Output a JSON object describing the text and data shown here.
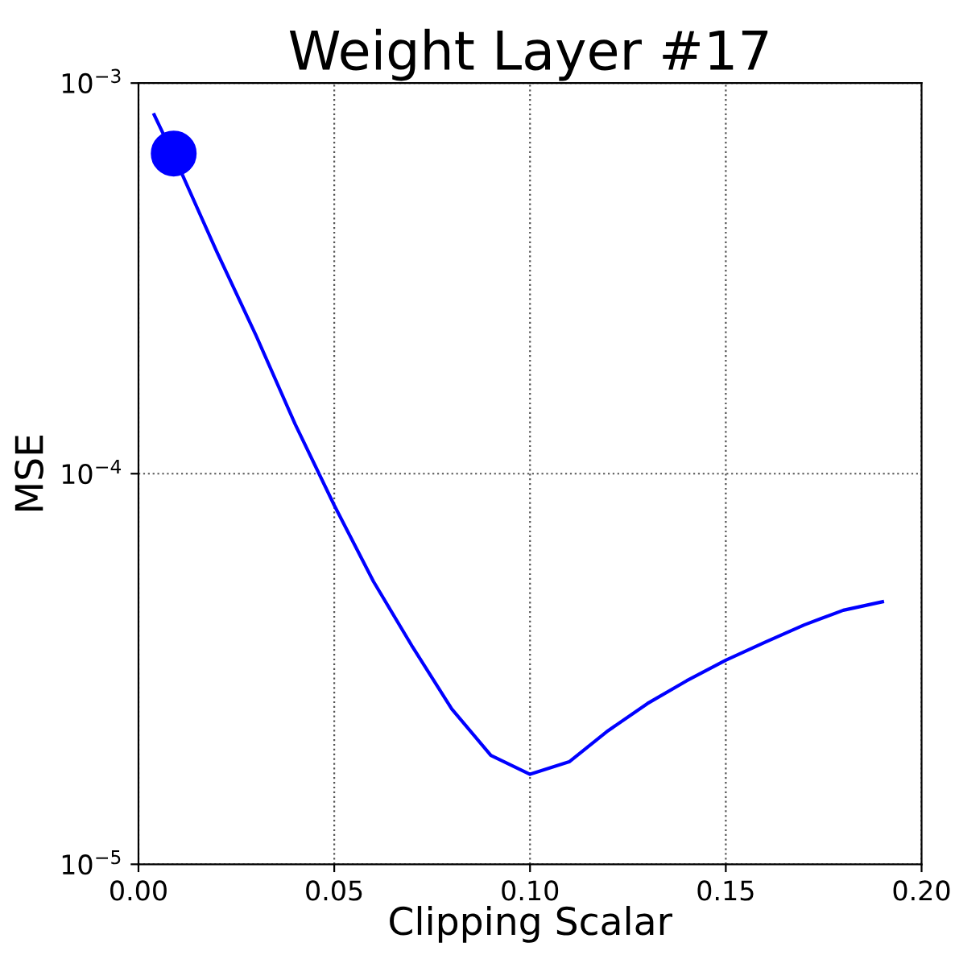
{
  "chart_data": {
    "type": "line",
    "title": "Weight Layer #17",
    "xlabel": "Clipping Scalar",
    "ylabel": "MSE",
    "log": "y",
    "grid": true,
    "legend": false,
    "xlim": [
      0,
      0.2
    ],
    "ylim": [
      1e-05,
      0.001
    ],
    "xticks": [
      {
        "value": 0,
        "label": "0.00"
      },
      {
        "value": 0.05,
        "label": "0.05"
      },
      {
        "value": 0.1,
        "label": "0.10"
      },
      {
        "value": 0.15,
        "label": "0.15"
      },
      {
        "value": 0.2,
        "label": "0.20"
      }
    ],
    "yticks": [
      {
        "value": 1e-05,
        "label": "10$^{−5}$"
      },
      {
        "value": 0.0001,
        "label": "10$^{−4}$"
      },
      {
        "value": 0.001,
        "label": "10$^{−3}$"
      }
    ],
    "series": [
      {
        "type": "line",
        "color": "#0000ff",
        "marker": "none",
        "line_style": "solid",
        "x": [
          0.004,
          0.01,
          0.02,
          0.03,
          0.04,
          0.05,
          0.06,
          0.07,
          0.08,
          0.09,
          0.1,
          0.11,
          0.12,
          0.13,
          0.14,
          0.15,
          0.16,
          0.17,
          0.18,
          0.19
        ],
        "values": [
          0.00083,
          0.00062,
          0.00037,
          0.000226,
          0.000134,
          8.3e-05,
          5.3e-05,
          3.6e-05,
          2.5e-05,
          1.9e-05,
          1.7e-05,
          1.83e-05,
          2.2e-05,
          2.58e-05,
          2.95e-05,
          3.33e-05,
          3.7e-05,
          4.1e-05,
          4.47e-05,
          4.7e-05
        ]
      },
      {
        "type": "scatter",
        "color": "#0000ff",
        "marker": "circle",
        "x": [
          0.009
        ],
        "values": [
          0.00066
        ]
      }
    ]
  }
}
